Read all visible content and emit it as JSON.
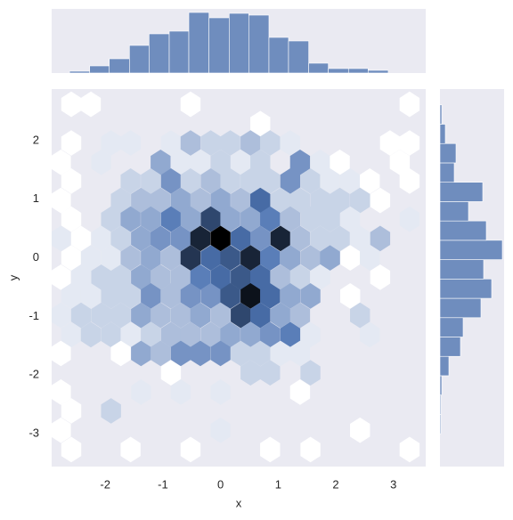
{
  "chart_data": [
    {
      "type": "hexbin",
      "xlabel": "x",
      "ylabel": "y",
      "xlim": [
        -2.93,
        3.56
      ],
      "ylim": [
        -3.56,
        2.88
      ],
      "xticks": [
        -2,
        -1,
        0,
        1,
        2,
        3
      ],
      "yticks": [
        -3,
        -2,
        -1,
        0,
        1,
        2
      ],
      "grid": true,
      "color": "#4c72b0",
      "x": [
        -2.59,
        -2.25,
        -0.52,
        3.28,
        0.69,
        -2.59,
        -1.9,
        -1.56,
        -0.86,
        -0.52,
        -0.17,
        0.17,
        0.52,
        0.86,
        1.21,
        2.94,
        3.28,
        -2.77,
        -2.07,
        -1.04,
        -0.69,
        -0.35,
        0,
        0.35,
        0.69,
        1.38,
        1.73,
        2.07,
        3.11,
        -2.59,
        -1.56,
        -1.21,
        -0.86,
        -0.52,
        -0.17,
        0.17,
        0.52,
        0.86,
        1.21,
        1.56,
        1.9,
        2.25,
        2.59,
        3.28,
        -2.77,
        -1.73,
        -1.38,
        -1.04,
        -0.69,
        -0.35,
        0,
        0.35,
        0.69,
        1.04,
        1.38,
        1.73,
        2.07,
        2.42,
        2.77,
        -2.59,
        -1.9,
        -1.56,
        -1.21,
        -0.86,
        -0.52,
        -0.17,
        0.17,
        0.52,
        0.86,
        1.21,
        1.56,
        1.9,
        2.25,
        3.28,
        -2.77,
        -2.42,
        -2.07,
        -1.73,
        -1.38,
        -1.04,
        -0.69,
        -0.35,
        0,
        0.35,
        0.69,
        1.04,
        1.38,
        1.73,
        2.07,
        2.42,
        2.77,
        -2.59,
        -2.25,
        -1.9,
        -1.56,
        -1.21,
        -0.86,
        -0.52,
        -0.17,
        0.17,
        0.52,
        0.86,
        1.21,
        1.56,
        1.9,
        2.25,
        2.59,
        -2.77,
        -2.42,
        -2.07,
        -1.73,
        -1.38,
        -1.04,
        -0.69,
        -0.35,
        0,
        0.35,
        0.69,
        1.04,
        1.38,
        1.73,
        2.77,
        -2.59,
        -2.25,
        -1.9,
        -1.56,
        -1.21,
        -0.86,
        -0.52,
        -0.17,
        0.17,
        0.52,
        0.86,
        1.21,
        1.56,
        2.25,
        -2.77,
        -2.42,
        -2.07,
        -1.73,
        -1.38,
        -1.04,
        -0.69,
        -0.35,
        0,
        0.35,
        0.69,
        1.04,
        1.38,
        2.42,
        -2.59,
        -2.25,
        -1.9,
        -1.56,
        -1.21,
        -0.86,
        -0.52,
        -0.17,
        0.17,
        0.52,
        0.86,
        1.21,
        1.56,
        2.59,
        -2.77,
        -1.73,
        -1.38,
        -1.04,
        -0.69,
        -0.35,
        0,
        0.35,
        0.69,
        1.04,
        1.38,
        -0.86,
        0.52,
        0.86,
        1.56,
        -2.77,
        -1.38,
        -0.69,
        0,
        1.38,
        -2.59,
        -1.9,
        -2.77,
        0,
        2.42,
        -2.59,
        -1.56,
        -0.52,
        0.86,
        1.56,
        3.28
      ],
      "y": [
        2.62,
        2.62,
        2.62,
        2.62,
        2.29,
        1.96,
        1.96,
        1.96,
        1.96,
        1.96,
        1.96,
        1.96,
        1.96,
        1.96,
        1.96,
        1.96,
        1.96,
        1.63,
        1.63,
        1.63,
        1.63,
        1.63,
        1.63,
        1.63,
        1.63,
        1.63,
        1.63,
        1.63,
        1.63,
        1.31,
        1.31,
        1.31,
        1.31,
        1.31,
        1.31,
        1.31,
        1.31,
        1.31,
        1.31,
        1.31,
        1.31,
        1.31,
        1.31,
        1.31,
        0.98,
        0.98,
        0.98,
        0.98,
        0.98,
        0.98,
        0.98,
        0.98,
        0.98,
        0.98,
        0.98,
        0.98,
        0.98,
        0.98,
        0.98,
        0.66,
        0.66,
        0.66,
        0.66,
        0.66,
        0.66,
        0.66,
        0.66,
        0.66,
        0.66,
        0.66,
        0.66,
        0.66,
        0.66,
        0.66,
        0.33,
        0.33,
        0.33,
        0.33,
        0.33,
        0.33,
        0.33,
        0.33,
        0.33,
        0.33,
        0.33,
        0.33,
        0.33,
        0.33,
        0.33,
        0.33,
        0.33,
        0,
        0,
        0,
        0,
        0,
        0,
        0,
        0,
        0,
        0,
        0,
        0,
        0,
        0,
        0,
        0,
        -0.33,
        -0.33,
        -0.33,
        -0.33,
        -0.33,
        -0.33,
        -0.33,
        -0.33,
        -0.33,
        -0.33,
        -0.33,
        -0.33,
        -0.33,
        -0.33,
        -0.33,
        -0.65,
        -0.65,
        -0.65,
        -0.65,
        -0.65,
        -0.65,
        -0.65,
        -0.65,
        -0.65,
        -0.65,
        -0.65,
        -0.65,
        -0.65,
        -0.65,
        -0.98,
        -0.98,
        -0.98,
        -0.98,
        -0.98,
        -0.98,
        -0.98,
        -0.98,
        -0.98,
        -0.98,
        -0.98,
        -0.98,
        -0.98,
        -0.98,
        -1.31,
        -1.31,
        -1.31,
        -1.31,
        -1.31,
        -1.31,
        -1.31,
        -1.31,
        -1.31,
        -1.31,
        -1.31,
        -1.31,
        -1.31,
        -1.31,
        -1.63,
        -1.63,
        -1.63,
        -1.63,
        -1.63,
        -1.63,
        -1.63,
        -1.63,
        -1.63,
        -1.63,
        -1.63,
        -1.96,
        -1.96,
        -1.96,
        -1.96,
        -2.29,
        -2.29,
        -2.29,
        -2.29,
        -2.29,
        -2.61,
        -2.61,
        -2.94,
        -2.94,
        -2.94,
        -3.27,
        -3.27,
        -3.27,
        -3.27,
        -3.27,
        -3.27
      ],
      "values": [
        1,
        1,
        1,
        1,
        1,
        1,
        2,
        2,
        2,
        4,
        3,
        3,
        4,
        3,
        2,
        1,
        1,
        1,
        2,
        5,
        2,
        2,
        3,
        2,
        3,
        6,
        2,
        1,
        1,
        1,
        3,
        3,
        6,
        3,
        4,
        3,
        3,
        3,
        6,
        3,
        2,
        2,
        1,
        1,
        1,
        3,
        4,
        4,
        5,
        4,
        5,
        4,
        8,
        3,
        3,
        3,
        3,
        3,
        1,
        1,
        3,
        5,
        5,
        7,
        5,
        10,
        5,
        5,
        7,
        4,
        3,
        3,
        2,
        2,
        2,
        1,
        2,
        3,
        5,
        6,
        6,
        12,
        14,
        8,
        6,
        12,
        4,
        3,
        3,
        2,
        4,
        1,
        2,
        2,
        4,
        5,
        4,
        11,
        8,
        9,
        12,
        7,
        5,
        4,
        5,
        1,
        2,
        1,
        2,
        3,
        3,
        5,
        4,
        4,
        7,
        8,
        9,
        8,
        4,
        3,
        2,
        1,
        2,
        2,
        3,
        3,
        6,
        4,
        6,
        6,
        9,
        13,
        8,
        5,
        5,
        1,
        2,
        3,
        3,
        3,
        5,
        4,
        4,
        5,
        4,
        10,
        8,
        5,
        4,
        3,
        2,
        3,
        3,
        2,
        3,
        4,
        4,
        4,
        5,
        5,
        6,
        7,
        2,
        2,
        1,
        1,
        5,
        4,
        6,
        6,
        6,
        3,
        3,
        2,
        2,
        1,
        3,
        3,
        3,
        1,
        2,
        2,
        2,
        1,
        1,
        3,
        1,
        2,
        1,
        1,
        1,
        1,
        1,
        1,
        1
      ]
    },
    {
      "type": "histogram",
      "orientation": "vertical",
      "color": "#4c72b0",
      "xlim": [
        -2.93,
        3.56
      ],
      "ylim": [
        0,
        72
      ],
      "bins": [
        -2.62,
        -2.27,
        -1.93,
        -1.58,
        -1.24,
        -0.89,
        -0.55,
        -0.2,
        0.15,
        0.49,
        0.84,
        1.18,
        1.53,
        1.87,
        2.22,
        2.56,
        2.91
      ],
      "values": [
        2,
        8,
        16,
        31,
        44,
        47,
        68,
        62,
        67,
        65,
        40,
        36,
        11,
        5,
        5,
        3
      ]
    },
    {
      "type": "histogram",
      "orientation": "horizontal",
      "color": "#4c72b0",
      "xlim": [
        0,
        72
      ],
      "ylim": [
        -3.56,
        2.88
      ],
      "bins": [
        -3.0,
        -2.67,
        -2.34,
        -2.01,
        -1.68,
        -1.35,
        -1.02,
        -0.69,
        -0.36,
        -0.03,
        0.3,
        0.63,
        0.96,
        1.29,
        1.62,
        1.95,
        2.28,
        2.61
      ],
      "values": [
        1,
        1,
        2,
        10,
        23,
        26,
        46,
        58,
        49,
        70,
        52,
        32,
        48,
        16,
        18,
        6,
        2
      ]
    }
  ]
}
